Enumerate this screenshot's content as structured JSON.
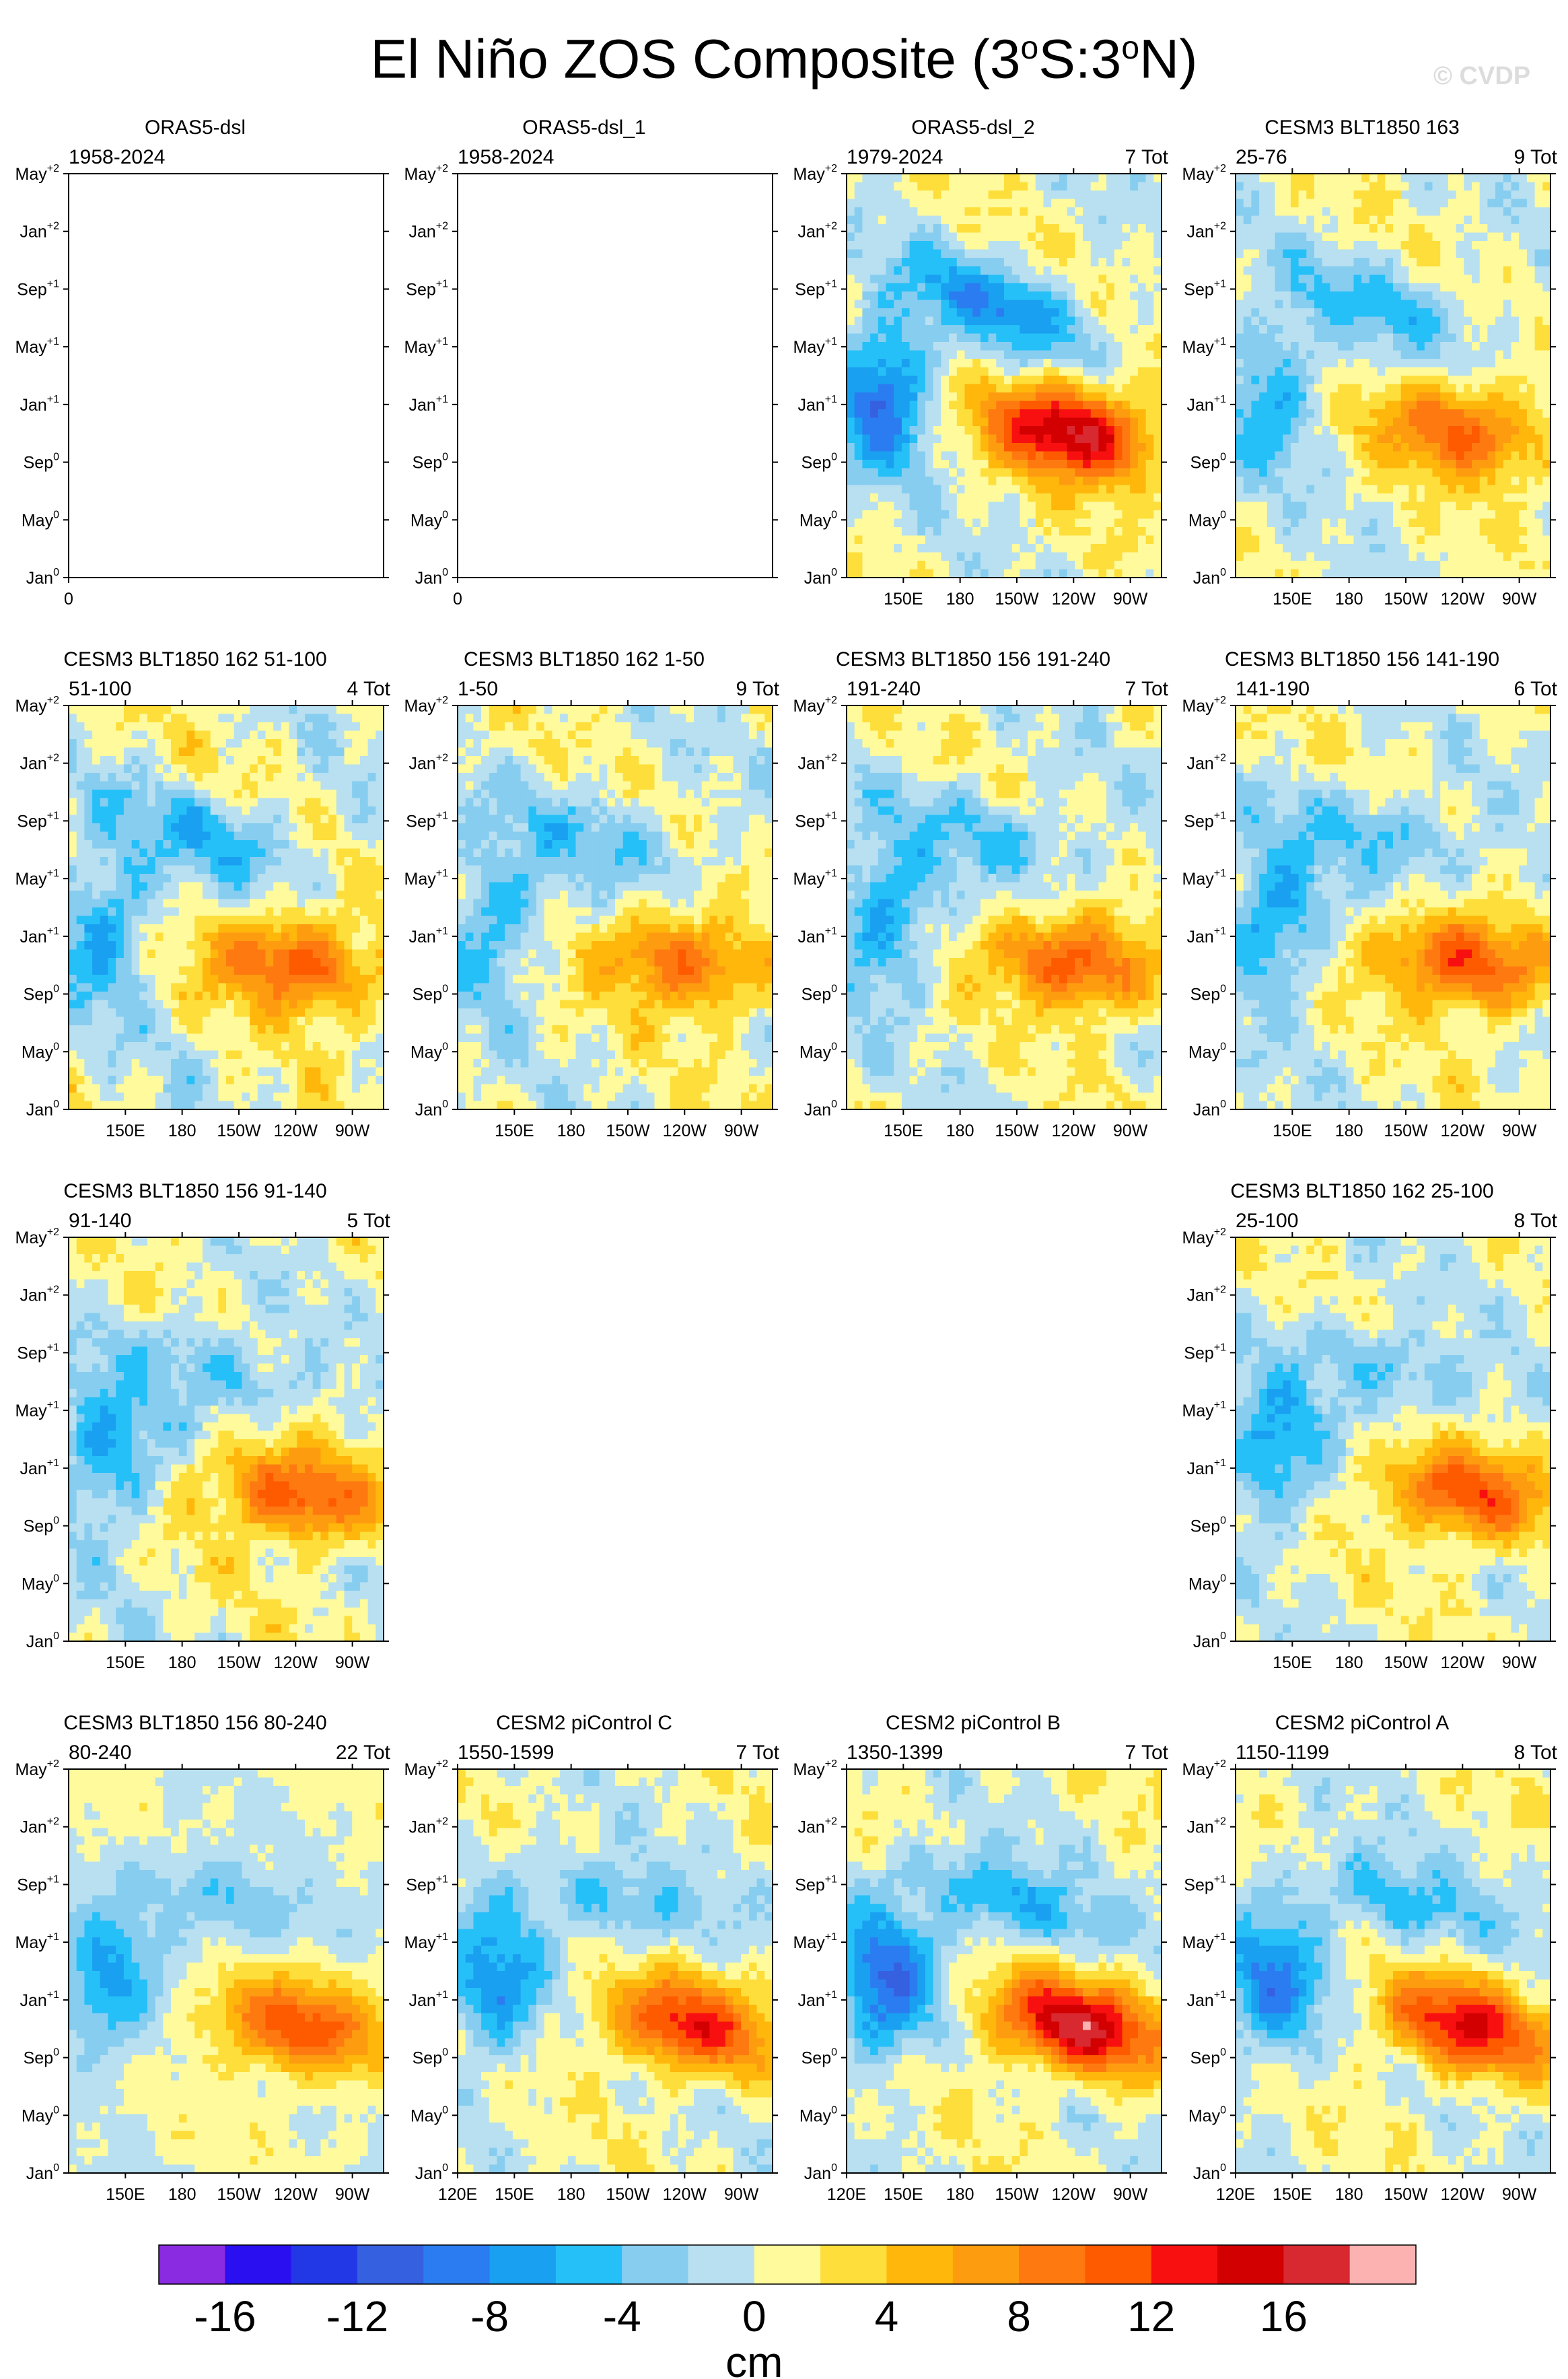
{
  "title": {
    "prefix": "El Niño ZOS Composite (3",
    "deg1": "o",
    "mid": "S:3",
    "deg2": "o",
    "suffix": "N)"
  },
  "watermark": "© CVDP",
  "chart_data": {
    "type": "heatmap",
    "description_title": "El Niño ZOS Composite (3°S:3°N)",
    "y_tick_labels": [
      {
        "base": "Jan",
        "sup": "0"
      },
      {
        "base": "May",
        "sup": "0"
      },
      {
        "base": "Sep",
        "sup": "0"
      },
      {
        "base": "Jan",
        "sup": "+1"
      },
      {
        "base": "May",
        "sup": "+1"
      },
      {
        "base": "Sep",
        "sup": "+1"
      },
      {
        "base": "Jan",
        "sup": "+2"
      },
      {
        "base": "May",
        "sup": "+2"
      }
    ],
    "x_ticks_model": [
      "150E",
      "180",
      "150W",
      "120W",
      "90W"
    ],
    "x_ticks_full": [
      "120E",
      "150E",
      "180",
      "150W",
      "120W",
      "90W"
    ],
    "x_ticks_empty": [
      "0"
    ],
    "panels": [
      {
        "title": "ORAS5-dsl",
        "left": "1958-2024",
        "right": "",
        "empty": true,
        "axis": "empty",
        "amp": 0,
        "noise": 0,
        "seed": 1
      },
      {
        "title": "ORAS5-dsl_1",
        "left": "1958-2024",
        "right": "",
        "empty": true,
        "axis": "empty",
        "amp": 0,
        "noise": 0,
        "seed": 2
      },
      {
        "title": "ORAS5-dsl_2",
        "left": "1979-2024",
        "right": "7 Tot",
        "empty": false,
        "axis": "model",
        "amp": 17,
        "noise": 1.6,
        "seed": 3
      },
      {
        "title": "CESM3 BLT1850 163",
        "left": "25-76",
        "right": "9 Tot",
        "empty": false,
        "axis": "model",
        "amp": 11,
        "noise": 1.5,
        "seed": 4
      },
      {
        "title": "CESM3 BLT1850 162 51-100",
        "left": "51-100",
        "right": "4 Tot",
        "empty": false,
        "axis": "model",
        "amp": 12,
        "noise": 2.0,
        "seed": 5
      },
      {
        "title": "CESM3 BLT1850 162 1-50",
        "left": "1-50",
        "right": "9 Tot",
        "empty": false,
        "axis": "model",
        "amp": 10.5,
        "noise": 1.8,
        "seed": 6
      },
      {
        "title": "CESM3 BLT1850 156 191-240",
        "left": "191-240",
        "right": "7 Tot",
        "empty": false,
        "axis": "model",
        "amp": 12,
        "noise": 1.7,
        "seed": 7
      },
      {
        "title": "CESM3 BLT1850 156 141-190",
        "left": "141-190",
        "right": "6 Tot",
        "empty": false,
        "axis": "model",
        "amp": 12.5,
        "noise": 1.7,
        "seed": 8
      },
      {
        "title": "CESM3 BLT1850 156 91-140",
        "left": "91-140",
        "right": "5 Tot",
        "empty": false,
        "axis": "model",
        "amp": 12,
        "noise": 1.8,
        "seed": 9
      },
      {
        "title": "CESM3 BLT1850 162 25-100",
        "left": "25-100",
        "right": "8 Tot",
        "empty": false,
        "axis": "model",
        "amp": 12,
        "noise": 1.6,
        "seed": 10
      },
      {
        "title": "CESM3 BLT1850 156 80-240",
        "left": "80-240",
        "right": "22 Tot",
        "empty": false,
        "axis": "model",
        "amp": 11.5,
        "noise": 1.0,
        "seed": 11
      },
      {
        "title": "CESM2 piControl C",
        "left": "1550-1599",
        "right": "7 Tot",
        "empty": false,
        "axis": "full",
        "amp": 13,
        "noise": 1.5,
        "seed": 12
      },
      {
        "title": "CESM2 piControl B",
        "left": "1350-1399",
        "right": "7 Tot",
        "empty": false,
        "axis": "full",
        "amp": 16.5,
        "noise": 1.5,
        "seed": 13
      },
      {
        "title": "CESM2 piControl A",
        "left": "1150-1199",
        "right": "8 Tot",
        "empty": false,
        "axis": "full",
        "amp": 13.5,
        "noise": 1.5,
        "seed": 14
      }
    ],
    "colorbar": {
      "levels": [
        -18,
        -16,
        -14,
        -12,
        -10,
        -8,
        -6,
        -4,
        -2,
        0,
        2,
        4,
        6,
        8,
        10,
        12,
        14,
        16,
        18
      ],
      "colors": [
        "#8a2be2",
        "#2a10f0",
        "#2237e6",
        "#3560e0",
        "#2b7cf0",
        "#1aa0f0",
        "#26c0f8",
        "#87cdf0",
        "#b8e0f0",
        "#fffa9c",
        "#fede3a",
        "#feb70a",
        "#fe9c10",
        "#fe7a10",
        "#fe5a00",
        "#f81010",
        "#d20000",
        "#d82830",
        "#fdb2b2"
      ],
      "tick_labels": [
        "-16",
        "-12",
        "-8",
        "-4",
        "0",
        "4",
        "8",
        "12",
        "16"
      ],
      "unit": "cm"
    }
  }
}
